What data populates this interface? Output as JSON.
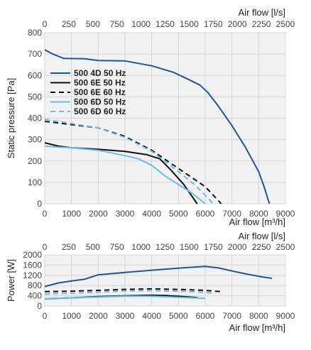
{
  "chart_data": [
    {
      "type": "line",
      "xlabel": "Air flow [m³/h]",
      "x2label": "Air flow [l/s]",
      "ylabel": "Static pressure [Pa]",
      "xlim": [
        0,
        9000
      ],
      "x2lim": [
        0,
        2500
      ],
      "ylim": [
        0,
        800
      ],
      "xticks": [
        0,
        1000,
        2000,
        3000,
        4000,
        5000,
        6000,
        7000,
        8000,
        9000
      ],
      "x2ticks": [
        0,
        250,
        500,
        750,
        1000,
        1250,
        1500,
        1750,
        2000,
        2250,
        2500
      ],
      "yticks": [
        0,
        100,
        200,
        300,
        400,
        500,
        600,
        700,
        800
      ],
      "grid": true,
      "legend_position": "upper-left",
      "series": [
        {
          "name": "500 4D 50 Hz",
          "color": "#1a56a0",
          "dash": "solid",
          "x": [
            0,
            300,
            700,
            1500,
            2000,
            3000,
            4000,
            4800,
            5400,
            5800,
            6100,
            6500,
            7000,
            7500,
            8000,
            8200,
            8400
          ],
          "y": [
            720,
            700,
            680,
            678,
            670,
            668,
            645,
            615,
            580,
            555,
            520,
            455,
            365,
            265,
            150,
            80,
            0
          ]
        },
        {
          "name": "500 6E 50 Hz",
          "color": "#111111",
          "dash": "solid",
          "x": [
            0,
            500,
            1000,
            2000,
            3000,
            3800,
            4300,
            4700,
            5200,
            5700
          ],
          "y": [
            285,
            270,
            262,
            255,
            245,
            230,
            210,
            160,
            90,
            0
          ]
        },
        {
          "name": "500 6E 60 Hz",
          "color": "#111111",
          "dash": "dashed",
          "x": [
            0,
            500,
            1000,
            2000,
            3000,
            4000,
            5000,
            6000,
            6600
          ],
          "y": [
            385,
            378,
            370,
            355,
            315,
            250,
            165,
            80,
            0
          ]
        },
        {
          "name": "500 6D 50 Hz",
          "color": "#66bfe8",
          "dash": "solid",
          "x": [
            0,
            500,
            1000,
            2000,
            3000,
            3500,
            4000,
            4500,
            5000,
            5500,
            6000
          ],
          "y": [
            270,
            265,
            262,
            250,
            225,
            210,
            180,
            130,
            90,
            50,
            0
          ]
        },
        {
          "name": "500 6D 60 Hz",
          "color": "#66bfe8",
          "dash": "dashed",
          "x": [
            0,
            500,
            1000,
            2000,
            3000,
            4000,
            5000,
            5600,
            6000,
            6300
          ],
          "y": [
            395,
            385,
            375,
            355,
            310,
            245,
            150,
            90,
            40,
            0
          ]
        }
      ]
    },
    {
      "type": "line",
      "xlabel": "Air flow [m³/h]",
      "x2label": "Air flow [l/s]",
      "ylabel": "Power [W]",
      "xlim": [
        0,
        9000
      ],
      "x2lim": [
        0,
        2500
      ],
      "ylim": [
        0,
        2000
      ],
      "xticks": [
        0,
        1000,
        2000,
        3000,
        4000,
        5000,
        6000,
        7000,
        8000,
        9000
      ],
      "x2ticks": [
        0,
        250,
        500,
        750,
        1000,
        1250,
        1500,
        1750,
        2000,
        2250,
        2500
      ],
      "yticks": [
        0,
        400,
        800,
        1200,
        1600,
        2000
      ],
      "grid": true,
      "series": [
        {
          "name": "500 4D 50 Hz",
          "color": "#1a56a0",
          "dash": "solid",
          "x": [
            0,
            500,
            1000,
            1500,
            2000,
            3000,
            4000,
            5000,
            6000,
            6500,
            7000,
            7500,
            8000,
            8500
          ],
          "y": [
            760,
            900,
            980,
            1050,
            1220,
            1310,
            1400,
            1480,
            1550,
            1490,
            1370,
            1260,
            1160,
            1080
          ]
        },
        {
          "name": "500 6E 50 Hz",
          "color": "#111111",
          "dash": "solid",
          "x": [
            0,
            1000,
            2000,
            3000,
            4000,
            4500,
            5000,
            5700
          ],
          "y": [
            280,
            320,
            370,
            400,
            420,
            410,
            380,
            330
          ]
        },
        {
          "name": "500 6E 60 Hz",
          "color": "#111111",
          "dash": "dashed",
          "x": [
            0,
            1000,
            2000,
            3000,
            4000,
            5000,
            6000,
            6600
          ],
          "y": [
            560,
            580,
            610,
            650,
            670,
            650,
            610,
            560
          ]
        },
        {
          "name": "500 6D 50 Hz",
          "color": "#66bfe8",
          "dash": "solid",
          "x": [
            0,
            1000,
            2000,
            3000,
            4000,
            5000,
            6000
          ],
          "y": [
            290,
            320,
            350,
            380,
            380,
            340,
            300
          ]
        },
        {
          "name": "500 6D 60 Hz",
          "color": "#66bfe8",
          "dash": "dashed",
          "x": [
            0,
            1000,
            2000,
            3000,
            4000,
            5000,
            6000,
            6300
          ],
          "y": [
            470,
            500,
            540,
            590,
            600,
            580,
            530,
            500
          ]
        }
      ]
    }
  ]
}
